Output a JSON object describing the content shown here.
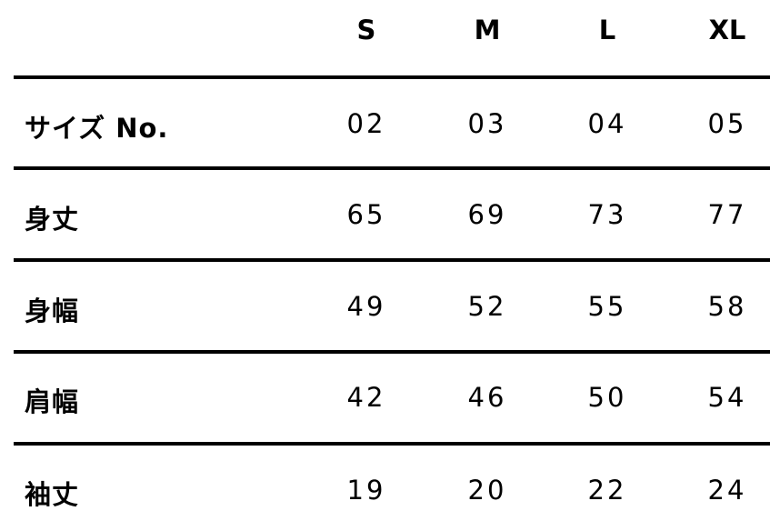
{
  "table": {
    "headers": [
      "S",
      "M",
      "L",
      "XL"
    ],
    "rows": [
      {
        "label": "サイズ No.",
        "values": [
          "02",
          "03",
          "04",
          "05"
        ]
      },
      {
        "label": "身丈",
        "values": [
          "65",
          "69",
          "73",
          "77"
        ]
      },
      {
        "label": "身幅",
        "values": [
          "49",
          "52",
          "55",
          "58"
        ]
      },
      {
        "label": "肩幅",
        "values": [
          "42",
          "46",
          "50",
          "54"
        ]
      },
      {
        "label": "袖丈",
        "values": [
          "19",
          "20",
          "22",
          "24"
        ]
      }
    ]
  }
}
